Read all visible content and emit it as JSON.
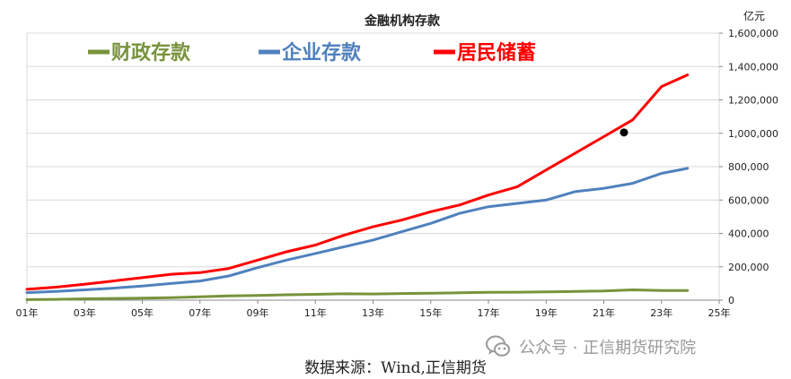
{
  "chart_data": {
    "type": "line",
    "title": "金融机构存款",
    "y_unit_label": "亿元",
    "ylim": [
      0,
      1600000
    ],
    "y_ticks": [
      "0",
      "200,000",
      "400,000",
      "600,000",
      "800,000",
      "1,000,000",
      "1,200,000",
      "1,400,000",
      "1,600,000"
    ],
    "y_tick_values": [
      0,
      200000,
      400000,
      600000,
      800000,
      1000000,
      1200000,
      1400000,
      1600000
    ],
    "x_ticks": [
      "01年",
      "03年",
      "05年",
      "07年",
      "09年",
      "11年",
      "13年",
      "15年",
      "17年",
      "19年",
      "21年",
      "23年",
      "25年"
    ],
    "x_tick_values": [
      2001,
      2003,
      2005,
      2007,
      2009,
      2011,
      2013,
      2015,
      2017,
      2019,
      2021,
      2023,
      2025
    ],
    "xlim": [
      2001,
      2025
    ],
    "grid": "horizontal",
    "legend_position": "top-left",
    "series": [
      {
        "name": "财政存款",
        "color": "#77933c",
        "x": [
          2001,
          2002,
          2003,
          2004,
          2005,
          2006,
          2007,
          2008,
          2009,
          2010,
          2011,
          2012,
          2013,
          2014,
          2015,
          2016,
          2017,
          2018,
          2019,
          2020,
          2021,
          2022,
          2023,
          2023.9
        ],
        "y": [
          3000,
          5000,
          8000,
          10000,
          12000,
          15000,
          20000,
          25000,
          28000,
          32000,
          35000,
          38000,
          37000,
          40000,
          42000,
          44000,
          47000,
          48000,
          50000,
          52000,
          55000,
          62000,
          58000,
          58000
        ]
      },
      {
        "name": "企业存款",
        "color": "#4f81bd",
        "x": [
          2001,
          2002,
          2003,
          2004,
          2005,
          2006,
          2007,
          2008,
          2009,
          2010,
          2011,
          2012,
          2013,
          2014,
          2015,
          2016,
          2017,
          2018,
          2019,
          2020,
          2021,
          2022,
          2023,
          2023.9
        ],
        "y": [
          45000,
          52000,
          62000,
          72000,
          85000,
          100000,
          115000,
          145000,
          195000,
          240000,
          280000,
          320000,
          360000,
          410000,
          460000,
          520000,
          560000,
          580000,
          600000,
          650000,
          670000,
          700000,
          760000,
          790000
        ]
      },
      {
        "name": "居民储蓄",
        "color": "#ff0000",
        "x": [
          2001,
          2002,
          2003,
          2004,
          2005,
          2006,
          2007,
          2008,
          2009,
          2010,
          2011,
          2012,
          2013,
          2014,
          2015,
          2016,
          2017,
          2018,
          2019,
          2020,
          2021,
          2022,
          2023,
          2023.9
        ],
        "y": [
          65000,
          78000,
          95000,
          115000,
          135000,
          155000,
          165000,
          190000,
          240000,
          290000,
          330000,
          390000,
          440000,
          480000,
          530000,
          570000,
          630000,
          680000,
          780000,
          880000,
          980000,
          1080000,
          1280000,
          1350000
        ]
      }
    ],
    "marker": {
      "x": 2021.7,
      "y": 1005000,
      "color": "#000000"
    }
  },
  "watermark": {
    "text": "公众号 · 正信期货研究院",
    "icon": "wechat-logo-icon"
  },
  "source_text": "数据来源：Wind,正信期货"
}
